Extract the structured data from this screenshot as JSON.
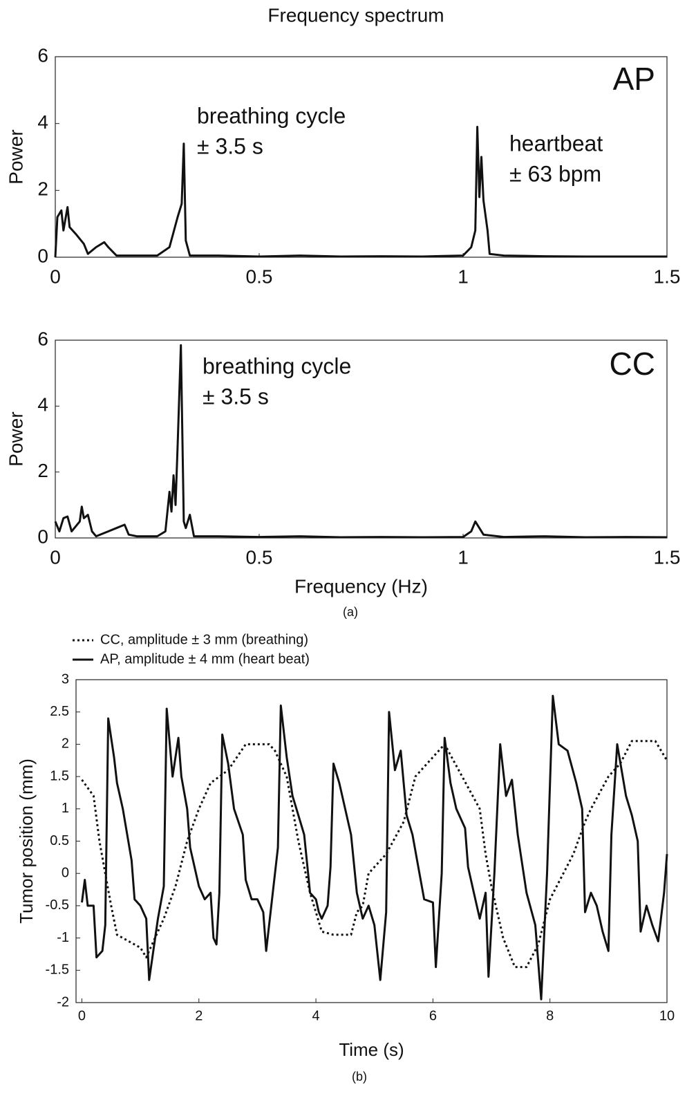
{
  "chart_data": [
    {
      "type": "line",
      "title": "Frequency spectrum",
      "panel_label": "AP",
      "ylabel": "Power",
      "annotations": [
        "breathing cycle",
        "± 3.5 s",
        "heartbeat",
        "± 63 bpm"
      ],
      "color": "#111111",
      "xlim": [
        0,
        1.5
      ],
      "xticks": [
        0,
        0.5,
        1,
        1.5
      ],
      "ylim": [
        0,
        6
      ],
      "yticks": [
        0,
        2,
        4,
        6
      ],
      "grid": false,
      "x": [
        0,
        0.005,
        0.015,
        0.02,
        0.03,
        0.035,
        0.05,
        0.07,
        0.08,
        0.1,
        0.12,
        0.13,
        0.15,
        0.2,
        0.25,
        0.28,
        0.3,
        0.31,
        0.315,
        0.32,
        0.33,
        0.4,
        0.5,
        0.6,
        0.7,
        0.8,
        0.9,
        1.0,
        1.02,
        1.03,
        1.035,
        1.04,
        1.045,
        1.05,
        1.06,
        1.065,
        1.1,
        1.2,
        1.3,
        1.4,
        1.5
      ],
      "values": [
        0,
        1.2,
        1.4,
        0.8,
        1.5,
        0.9,
        0.7,
        0.4,
        0.1,
        0.3,
        0.45,
        0.3,
        0.05,
        0.05,
        0.05,
        0.3,
        1.2,
        1.6,
        3.4,
        0.5,
        0.05,
        0.05,
        0.02,
        0.05,
        0.02,
        0.03,
        0.02,
        0.05,
        0.3,
        0.8,
        3.9,
        1.8,
        3.0,
        1.7,
        0.8,
        0.1,
        0.05,
        0.03,
        0.02,
        0.02,
        0.02
      ]
    },
    {
      "type": "line",
      "panel_label": "CC",
      "ylabel": "Power",
      "xlabel": "Frequency (Hz)",
      "caption": "(a)",
      "annotations": [
        "breathing cycle",
        "± 3.5 s"
      ],
      "color": "#111111",
      "xlim": [
        0,
        1.5
      ],
      "xticks": [
        0,
        0.5,
        1,
        1.5
      ],
      "ylim": [
        0,
        6
      ],
      "yticks": [
        0,
        2,
        4,
        6
      ],
      "grid": false,
      "x": [
        0,
        0.01,
        0.02,
        0.03,
        0.04,
        0.06,
        0.065,
        0.07,
        0.08,
        0.09,
        0.1,
        0.13,
        0.15,
        0.17,
        0.18,
        0.2,
        0.25,
        0.27,
        0.28,
        0.285,
        0.29,
        0.295,
        0.3,
        0.308,
        0.315,
        0.32,
        0.33,
        0.34,
        0.4,
        0.5,
        0.6,
        0.7,
        0.8,
        0.9,
        1.0,
        1.02,
        1.03,
        1.04,
        1.05,
        1.1,
        1.2,
        1.3,
        1.4,
        1.5
      ],
      "values": [
        0.5,
        0.2,
        0.6,
        0.65,
        0.2,
        0.5,
        0.95,
        0.6,
        0.7,
        0.2,
        0.05,
        0.2,
        0.3,
        0.4,
        0.1,
        0.05,
        0.05,
        0.2,
        1.4,
        0.8,
        1.9,
        1.0,
        2.8,
        5.85,
        0.5,
        0.3,
        0.7,
        0.05,
        0.05,
        0.03,
        0.05,
        0.02,
        0.03,
        0.02,
        0.03,
        0.2,
        0.5,
        0.3,
        0.1,
        0.03,
        0.05,
        0.02,
        0.03,
        0.02
      ]
    },
    {
      "type": "line",
      "ylabel": "Tumor position (mm)",
      "xlabel": "Time (s)",
      "caption": "(b)",
      "legend": "top-left",
      "xlim": [
        -0.1,
        10
      ],
      "xticks": [
        0,
        2,
        4,
        6,
        8,
        10
      ],
      "ylim": [
        -2,
        3
      ],
      "yticks": [
        -2,
        -1.5,
        -1,
        -0.5,
        0,
        0.5,
        1,
        1.5,
        2,
        2.5,
        3
      ],
      "grid": false,
      "series": [
        {
          "name": "CC, amplitude ± 3 mm (breathing)",
          "color": "#111111",
          "style": "dotted",
          "x": [
            0,
            0.2,
            0.3,
            0.4,
            0.5,
            0.6,
            0.8,
            1.0,
            1.1,
            1.2,
            1.4,
            1.6,
            1.8,
            2.0,
            2.2,
            2.5,
            2.8,
            3.2,
            3.3,
            3.5,
            3.7,
            3.9,
            4.1,
            4.3,
            4.6,
            4.7,
            4.8,
            4.9,
            5.2,
            5.5,
            5.7,
            5.9,
            6.2,
            6.5,
            6.8,
            6.9,
            7.0,
            7.2,
            7.4,
            7.6,
            7.8,
            8.0,
            8.4,
            8.6,
            8.7,
            9.0,
            9.2,
            9.4,
            9.8,
            10
          ],
          "values": [
            1.45,
            1.2,
            0.5,
            0,
            -0.5,
            -0.95,
            -1.05,
            -1.15,
            -1.3,
            -1.1,
            -0.7,
            -0.2,
            0.5,
            1.0,
            1.4,
            1.6,
            2.0,
            2.0,
            1.9,
            1.5,
            0.5,
            -0.3,
            -0.9,
            -0.95,
            -0.95,
            -0.6,
            -0.5,
            0,
            0.3,
            0.8,
            1.5,
            1.7,
            2.0,
            1.5,
            1.0,
            0.3,
            -0.2,
            -1.0,
            -1.45,
            -1.45,
            -1.1,
            -0.4,
            0.3,
            0.8,
            1.0,
            1.5,
            1.7,
            2.05,
            2.05,
            1.75
          ]
        },
        {
          "name": "AP, amplitude ± 4 mm (heart beat)",
          "color": "#111111",
          "style": "solid",
          "x": [
            0,
            0.05,
            0.1,
            0.2,
            0.25,
            0.35,
            0.4,
            0.45,
            0.55,
            0.6,
            0.7,
            0.85,
            0.9,
            1.0,
            1.1,
            1.15,
            1.3,
            1.4,
            1.45,
            1.55,
            1.65,
            1.7,
            1.8,
            1.85,
            2.0,
            2.1,
            2.2,
            2.25,
            2.3,
            2.35,
            2.4,
            2.5,
            2.6,
            2.75,
            2.8,
            2.9,
            3.0,
            3.1,
            3.15,
            3.25,
            3.35,
            3.4,
            3.5,
            3.6,
            3.7,
            3.8,
            3.9,
            4.0,
            4.05,
            4.1,
            4.2,
            4.25,
            4.3,
            4.4,
            4.5,
            4.6,
            4.7,
            4.8,
            4.9,
            5.0,
            5.1,
            5.2,
            5.25,
            5.35,
            5.45,
            5.55,
            5.65,
            5.75,
            5.85,
            6.0,
            6.05,
            6.15,
            6.2,
            6.3,
            6.4,
            6.55,
            6.6,
            6.7,
            6.8,
            6.9,
            6.95,
            7.05,
            7.15,
            7.25,
            7.35,
            7.45,
            7.6,
            7.75,
            7.85,
            7.95,
            8.05,
            8.15,
            8.3,
            8.45,
            8.55,
            8.6,
            8.7,
            8.8,
            8.9,
            9.0,
            9.05,
            9.15,
            9.3,
            9.4,
            9.5,
            9.55,
            9.65,
            9.75,
            9.85,
            9.95,
            10
          ],
          "values": [
            -0.45,
            -0.1,
            -0.5,
            -0.5,
            -1.3,
            -1.2,
            -0.8,
            2.4,
            1.8,
            1.4,
            1.0,
            0.2,
            -0.4,
            -0.5,
            -0.7,
            -1.65,
            -0.7,
            -0.2,
            2.55,
            1.5,
            2.1,
            1.5,
            1.0,
            0.4,
            -0.2,
            -0.4,
            -0.3,
            -1.0,
            -1.1,
            -0.3,
            2.15,
            1.7,
            1.0,
            0.6,
            -0.1,
            -0.4,
            -0.4,
            -0.6,
            -1.2,
            -0.4,
            0.4,
            2.6,
            1.8,
            1.2,
            0.9,
            0.6,
            -0.3,
            -0.4,
            -0.6,
            -0.7,
            -0.5,
            0.1,
            1.7,
            1.4,
            1.0,
            0.6,
            -0.3,
            -0.7,
            -0.5,
            -0.8,
            -1.65,
            -0.6,
            2.5,
            1.6,
            1.9,
            0.9,
            0.6,
            0.1,
            -0.4,
            -0.45,
            -1.45,
            0,
            2.1,
            1.4,
            1.0,
            0.7,
            0.1,
            -0.3,
            -0.7,
            -0.3,
            -1.6,
            0,
            2.0,
            1.2,
            1.45,
            0.6,
            -0.3,
            -0.8,
            -1.95,
            0,
            2.75,
            2.0,
            1.9,
            1.4,
            1.0,
            -0.6,
            -0.3,
            -0.5,
            -0.9,
            -1.2,
            0.6,
            2.0,
            1.2,
            0.9,
            0.5,
            -0.9,
            -0.5,
            -0.8,
            -1.05,
            -0.3,
            0.3
          ]
        }
      ]
    }
  ]
}
